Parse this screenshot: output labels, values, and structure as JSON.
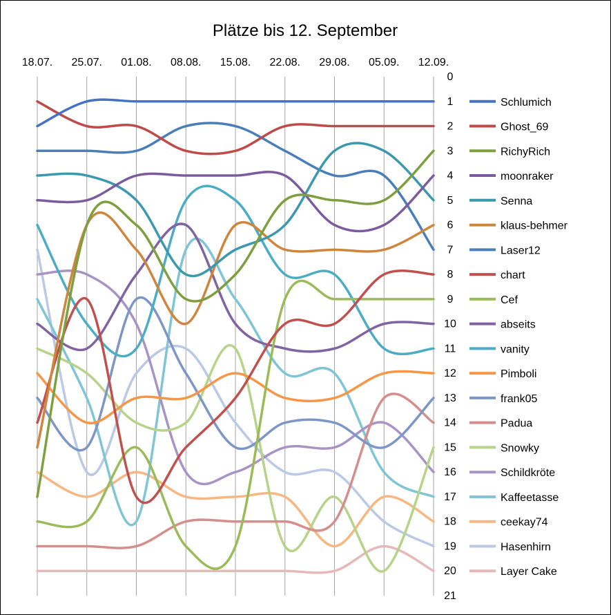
{
  "chart_data": {
    "type": "line",
    "title": "Plätze bis 12. September",
    "x": [
      "18.07.",
      "25.07.",
      "01.08.",
      "08.08.",
      "15.08.",
      "22.08.",
      "29.08.",
      "05.09.",
      "12.09."
    ],
    "ylim": [
      0,
      21
    ],
    "y_reversed": true,
    "y_ticks": [
      0,
      1,
      2,
      3,
      4,
      5,
      6,
      7,
      8,
      9,
      10,
      11,
      12,
      13,
      14,
      15,
      16,
      17,
      18,
      19,
      20,
      21
    ],
    "grid": "vertical",
    "legend_position": "right",
    "series": [
      {
        "name": "Schlumich",
        "color": "#4472c4",
        "values": [
          2,
          1,
          1,
          1,
          1,
          1,
          1,
          1,
          1
        ]
      },
      {
        "name": "Ghost_69",
        "color": "#be4b48",
        "values": [
          1,
          2,
          2,
          3,
          3,
          2,
          2,
          2,
          2
        ]
      },
      {
        "name": "RichyRich",
        "color": "#7e9f3f",
        "values": [
          17,
          6,
          6,
          9,
          8,
          5,
          5,
          5,
          3
        ]
      },
      {
        "name": "moonraker",
        "color": "#7b5b9d",
        "values": [
          5,
          5,
          4,
          4,
          4,
          4,
          6,
          6,
          4
        ]
      },
      {
        "name": "Senna",
        "color": "#3b98ad",
        "values": [
          4,
          4,
          5,
          8,
          7,
          6,
          3,
          3,
          5
        ]
      },
      {
        "name": "klaus-behmer",
        "color": "#d0853c",
        "values": [
          15,
          6,
          7,
          10,
          6,
          7,
          7,
          7,
          6
        ]
      },
      {
        "name": "Laser12",
        "color": "#4a7ebb",
        "values": [
          3,
          3,
          3,
          2,
          2,
          3,
          4,
          4,
          7
        ]
      },
      {
        "name": "chart",
        "color": "#c0504d",
        "values": [
          14,
          9,
          17,
          15,
          13,
          10,
          10,
          8,
          8
        ]
      },
      {
        "name": "Cef",
        "color": "#9bbb59",
        "values": [
          18,
          18,
          15,
          19,
          19,
          9,
          9,
          9,
          9
        ]
      },
      {
        "name": "abseits",
        "color": "#8064a2",
        "values": [
          10,
          11,
          8,
          6,
          10,
          11,
          11,
          10,
          10
        ]
      },
      {
        "name": "vanity",
        "color": "#4bacc6",
        "values": [
          6,
          10,
          11,
          5,
          5,
          8,
          8,
          11,
          11
        ]
      },
      {
        "name": "Pimboli",
        "color": "#f79646",
        "values": [
          12,
          14,
          13,
          13,
          12,
          13,
          13,
          12,
          12
        ]
      },
      {
        "name": "frank05",
        "color": "#7d96c8",
        "values": [
          13,
          15,
          9,
          12,
          15,
          14,
          14,
          15,
          13
        ]
      },
      {
        "name": "Padua",
        "color": "#d48e8b",
        "values": [
          19,
          19,
          19,
          18,
          18,
          18,
          18,
          13,
          14
        ]
      },
      {
        "name": "Snowky",
        "color": "#b7d389",
        "values": [
          11,
          12,
          14,
          14,
          11,
          19,
          17,
          20,
          15
        ]
      },
      {
        "name": "Schildkröte",
        "color": "#a894c4",
        "values": [
          8,
          8,
          10,
          16,
          16,
          15,
          15,
          14,
          16
        ]
      },
      {
        "name": "Kaffeetasse",
        "color": "#7fc5d6",
        "values": [
          9,
          13,
          18,
          7,
          9,
          12,
          12,
          16,
          17
        ]
      },
      {
        "name": "ceekay74",
        "color": "#f8b681",
        "values": [
          16,
          17,
          16,
          17,
          17,
          17,
          19,
          17,
          18
        ]
      },
      {
        "name": "Hasenhirn",
        "color": "#b9c9e6",
        "values": [
          7,
          16,
          12,
          11,
          14,
          16,
          16,
          18,
          19
        ]
      },
      {
        "name": "Layer Cake",
        "color": "#e6b9b8",
        "values": [
          20,
          20,
          20,
          20,
          20,
          20,
          20,
          19,
          20
        ]
      }
    ]
  }
}
